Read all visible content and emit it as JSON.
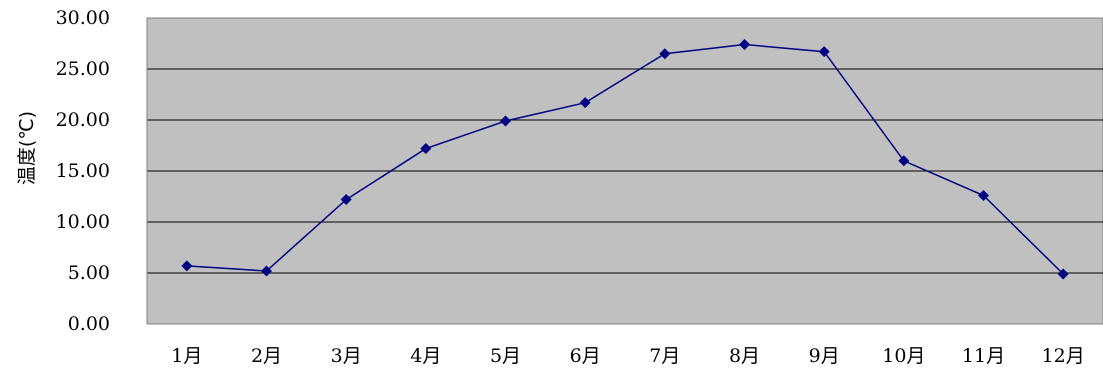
{
  "chart_data": {
    "type": "line",
    "ylabel": "温度(℃)",
    "xlabel": "",
    "title": "",
    "categories": [
      "1月",
      "2月",
      "3月",
      "4月",
      "5月",
      "6月",
      "7月",
      "8月",
      "9月",
      "10月",
      "11月",
      "12月"
    ],
    "values": [
      5.7,
      5.2,
      12.2,
      17.2,
      19.9,
      21.7,
      26.5,
      27.4,
      26.7,
      16.0,
      12.6,
      4.9
    ],
    "ylim": [
      0,
      30
    ],
    "yticks": [
      "0.00",
      "5.00",
      "10.00",
      "15.00",
      "20.00",
      "25.00",
      "30.00"
    ],
    "grid": "horizontal",
    "legend": "none",
    "colors": {
      "plot_background": "#c0c0c0",
      "series": "#000080",
      "gridline": "#000000"
    }
  }
}
